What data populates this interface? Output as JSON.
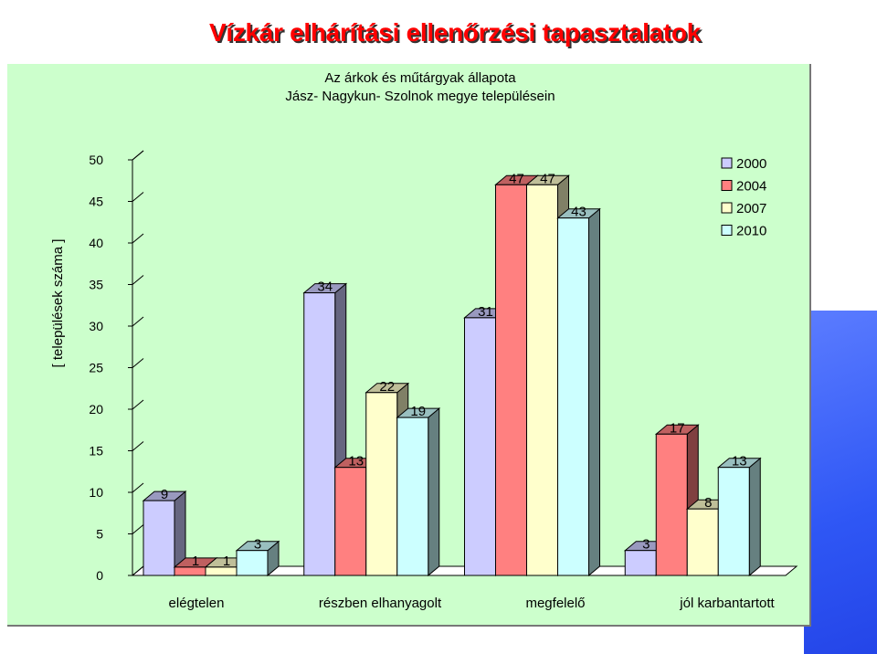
{
  "page": {
    "title": "Vízkár elhárítási ellenőrzési tapasztalatok"
  },
  "chart_data": {
    "type": "bar",
    "title": "Az árkok és műtárgyak állapota",
    "subtitle": "Jász- Nagykun- Szolnok megye településein",
    "ylabel": "[ települések száma ]",
    "xlabel": "",
    "ylim": [
      0,
      50
    ],
    "yticks": [
      0,
      5,
      10,
      15,
      20,
      25,
      30,
      35,
      40,
      45,
      50
    ],
    "categories": [
      "elégtelen",
      "részben elhanyagolt",
      "megfelelő",
      "jól karbantartott"
    ],
    "series": [
      {
        "name": "2000",
        "color": "#ccccff",
        "values": [
          9,
          34,
          31,
          3
        ]
      },
      {
        "name": "2004",
        "color": "#ff8080",
        "values": [
          1,
          13,
          47,
          17
        ]
      },
      {
        "name": "2007",
        "color": "#ffffcc",
        "values": [
          1,
          22,
          47,
          8
        ]
      },
      {
        "name": "2010",
        "color": "#ccffff",
        "values": [
          3,
          19,
          43,
          13
        ]
      }
    ],
    "legend": "top-right",
    "three_d": true,
    "grid": false,
    "background": "#ccffcc"
  }
}
